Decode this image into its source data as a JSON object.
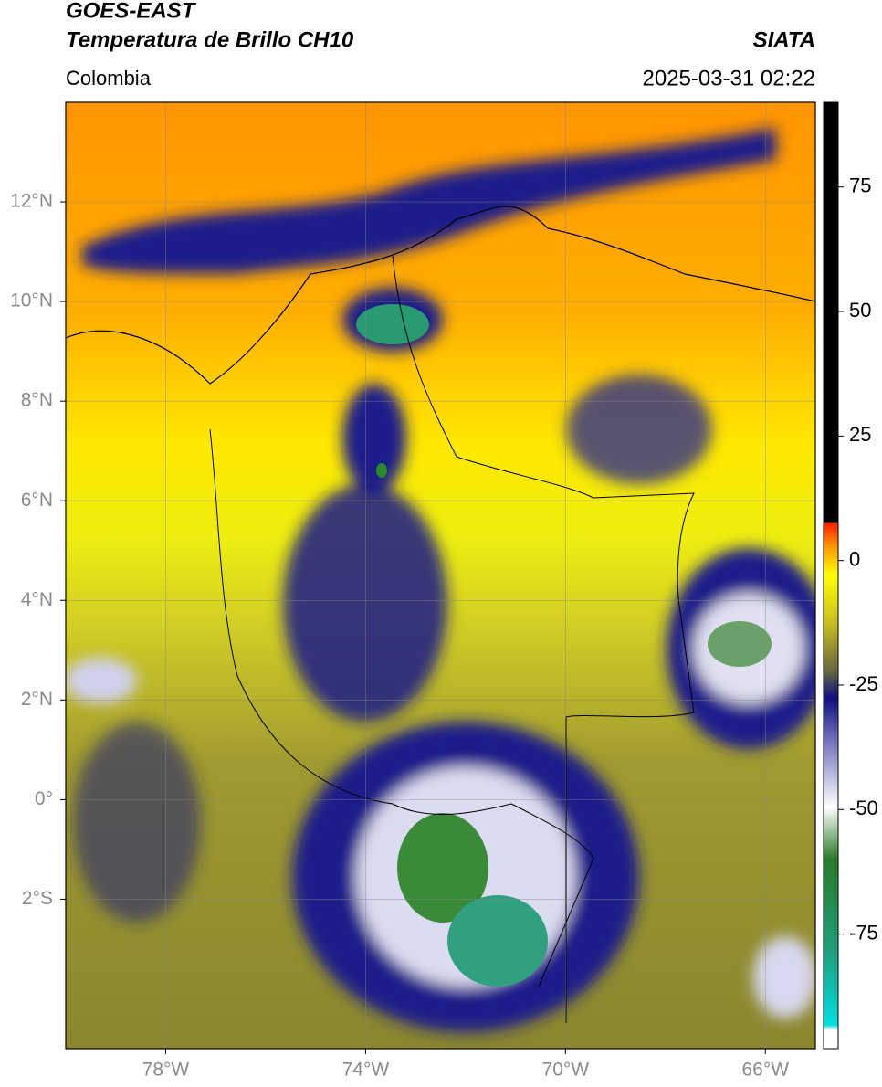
{
  "header": {
    "title": "GOES-EAST",
    "subtitle": "Temperatura de Brillo CH10",
    "source": "SIATA",
    "region": "Colombia",
    "datetime": "2025-03-31 02:22"
  },
  "map": {
    "xlim": [
      -80,
      -65
    ],
    "ylim": [
      -5,
      14
    ],
    "xticks": [
      {
        "value": -78,
        "label": "78°W"
      },
      {
        "value": -74,
        "label": "74°W"
      },
      {
        "value": -70,
        "label": "70°W"
      },
      {
        "value": -66,
        "label": "66°W"
      }
    ],
    "yticks": [
      {
        "value": 12,
        "label": "12°N"
      },
      {
        "value": 10,
        "label": "10°N"
      },
      {
        "value": 8,
        "label": "8°N"
      },
      {
        "value": 6,
        "label": "6°N"
      },
      {
        "value": 4,
        "label": "4°N"
      },
      {
        "value": 2,
        "label": "2°N"
      },
      {
        "value": 0,
        "label": "0°"
      },
      {
        "value": -2,
        "label": "2°S"
      }
    ],
    "grid": true
  },
  "colorbar": {
    "ylim": [
      -98,
      92
    ],
    "yticks": [
      75,
      50,
      25,
      0,
      -25,
      -50,
      -75
    ]
  }
}
